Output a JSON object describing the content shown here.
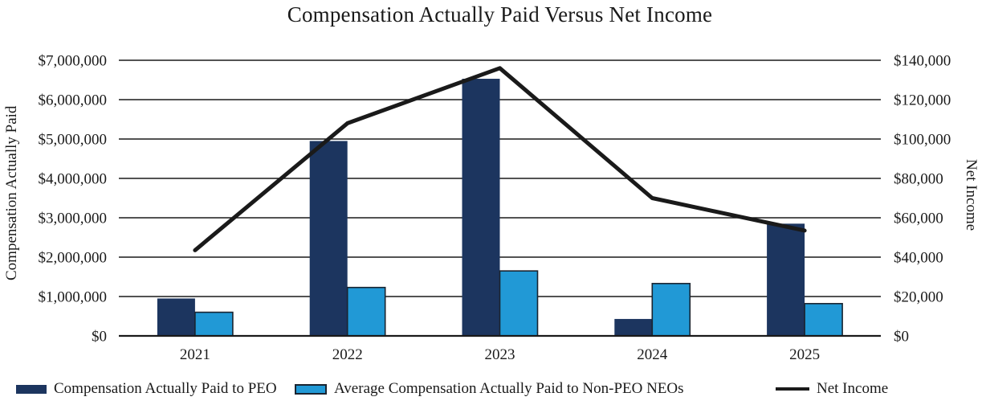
{
  "chart_data": {
    "type": "combo-bar-line",
    "title": "Compensation Actually Paid Versus Net Income",
    "categories": [
      "2021",
      "2022",
      "2023",
      "2024",
      "2025"
    ],
    "series": [
      {
        "name": "Compensation Actually Paid to PEO",
        "type": "bar",
        "axis": "left",
        "color": "#1C355F",
        "values": [
          950000,
          4950000,
          6530000,
          430000,
          2850000
        ]
      },
      {
        "name": "Average Compensation Actually Paid to Non-PEO NEOs",
        "type": "bar",
        "axis": "left",
        "color": "#2199D6",
        "border_color": "#1A2430",
        "values": [
          600000,
          1230000,
          1650000,
          1330000,
          820000
        ]
      },
      {
        "name": "Net Income",
        "type": "line",
        "axis": "right",
        "color": "#1A1A1A",
        "values": [
          43500,
          108000,
          136000,
          70000,
          53500
        ]
      }
    ],
    "ylabel_left": "Compensation Actually Paid",
    "ylabel_right": "Net Income",
    "axes": {
      "left": {
        "min": 0,
        "max": 7000000,
        "step": 1000000,
        "tick_prefix": "$"
      },
      "right": {
        "min": 0,
        "max": 140000,
        "step": 20000,
        "tick_prefix": "$"
      }
    },
    "grid": true,
    "legend_position": "bottom",
    "colors": {
      "background": "#FFFFFF",
      "text": "#1A1A1A",
      "gridline": "#1A1A1A"
    }
  }
}
